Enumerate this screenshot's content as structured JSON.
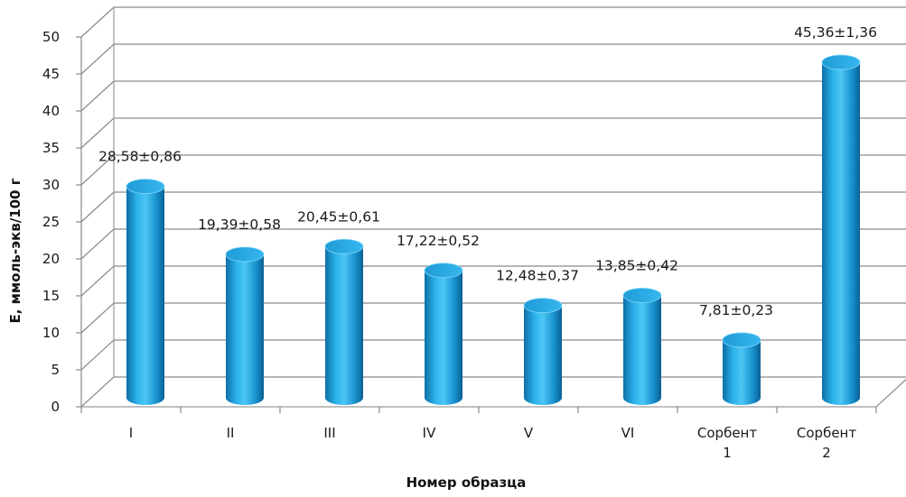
{
  "chart_data": {
    "type": "bar",
    "style": "3d-cylinder",
    "color": "#1aa0dc",
    "categories": [
      [
        "I"
      ],
      [
        "II"
      ],
      [
        "III"
      ],
      [
        "IV"
      ],
      [
        "V"
      ],
      [
        "VI"
      ],
      [
        "Сорбент",
        "1"
      ],
      [
        "Сорбент",
        "2"
      ]
    ],
    "values": [
      28.58,
      19.39,
      20.45,
      17.22,
      12.48,
      13.85,
      7.81,
      45.36
    ],
    "data_labels": [
      "28,58±0,86",
      "19,39±0,58",
      "20,45±0,61",
      "17,22±0,52",
      "12,48±0,37",
      "13,85±0,42",
      "7,81±0,23",
      "45,36±1,36"
    ],
    "ylabel": "Е, ммоль-экв/100 г",
    "xlabel": "Номер образца",
    "ylim": [
      0,
      50
    ],
    "yticks": [
      0,
      5,
      10,
      15,
      20,
      25,
      30,
      35,
      40,
      45,
      50
    ],
    "grid": true,
    "legend": "none"
  }
}
